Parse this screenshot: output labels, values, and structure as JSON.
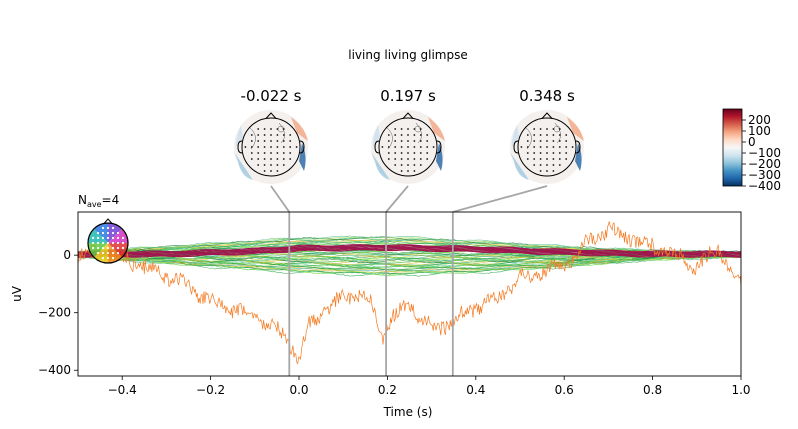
{
  "figure": {
    "title": "living living glimpse",
    "nave_label": "N",
    "nave_sub": "ave",
    "nave_value": "=4"
  },
  "chart_data": {
    "type": "line",
    "title": "living living glimpse",
    "xlabel": "Time (s)",
    "ylabel": "uV",
    "xlim": [
      -0.5,
      1.0
    ],
    "ylim": [
      -420,
      150
    ],
    "xticks": [
      -0.4,
      -0.2,
      0.0,
      0.2,
      0.4,
      0.6,
      0.8,
      1.0
    ],
    "xtick_labels": [
      "−0.4",
      "−0.2",
      "0.0",
      "0.2",
      "0.4",
      "0.6",
      "0.8",
      "1.0"
    ],
    "yticks": [
      0,
      -200,
      -400
    ],
    "ytick_labels": [
      "0",
      "−200",
      "−400"
    ],
    "grid": false,
    "n_channels": 60,
    "highlight_series": {
      "color": "#f47a20",
      "points": [
        [
          -0.5,
          10
        ],
        [
          -0.45,
          5
        ],
        [
          -0.4,
          -10
        ],
        [
          -0.35,
          -40
        ],
        [
          -0.3,
          -70
        ],
        [
          -0.25,
          -110
        ],
        [
          -0.2,
          -160
        ],
        [
          -0.15,
          -190
        ],
        [
          -0.1,
          -210
        ],
        [
          -0.05,
          -260
        ],
        [
          -0.02,
          -300
        ],
        [
          0.0,
          -380
        ],
        [
          0.02,
          -250
        ],
        [
          0.05,
          -200
        ],
        [
          0.1,
          -150
        ],
        [
          0.13,
          -130
        ],
        [
          0.16,
          -160
        ],
        [
          0.19,
          -280
        ],
        [
          0.21,
          -220
        ],
        [
          0.25,
          -170
        ],
        [
          0.3,
          -260
        ],
        [
          0.35,
          -230
        ],
        [
          0.4,
          -180
        ],
        [
          0.45,
          -150
        ],
        [
          0.5,
          -80
        ],
        [
          0.55,
          -60
        ],
        [
          0.6,
          -40
        ],
        [
          0.65,
          40
        ],
        [
          0.7,
          90
        ],
        [
          0.75,
          60
        ],
        [
          0.8,
          30
        ],
        [
          0.85,
          0
        ],
        [
          0.9,
          -40
        ],
        [
          0.95,
          20
        ],
        [
          1.0,
          -100
        ]
      ]
    },
    "band_series": {
      "color": "#a0174f",
      "points": [
        [
          -0.3,
          5
        ],
        [
          -0.1,
          15
        ],
        [
          0.0,
          25
        ],
        [
          0.2,
          28
        ],
        [
          0.4,
          22
        ],
        [
          0.6,
          12
        ],
        [
          0.8,
          5
        ]
      ]
    },
    "envelope_top": {
      "color": "#3cc43c",
      "points": [
        [
          -0.5,
          10
        ],
        [
          -0.2,
          40
        ],
        [
          0.0,
          60
        ],
        [
          0.2,
          65
        ],
        [
          0.4,
          50
        ],
        [
          0.6,
          30
        ],
        [
          0.8,
          15
        ],
        [
          1.0,
          10
        ]
      ]
    },
    "envelope_bottom": {
      "color": "#1a7a28",
      "points": [
        [
          -0.5,
          -5
        ],
        [
          -0.2,
          -40
        ],
        [
          0.0,
          -60
        ],
        [
          0.2,
          -70
        ],
        [
          0.4,
          -60
        ],
        [
          0.6,
          -40
        ],
        [
          0.8,
          -15
        ],
        [
          1.0,
          -5
        ]
      ]
    },
    "time_markers": [
      -0.022,
      0.197,
      0.348
    ]
  },
  "topomaps": [
    {
      "time_label": "-0.022 s"
    },
    {
      "time_label": "0.197 s"
    },
    {
      "time_label": "0.348 s"
    }
  ],
  "colorbar": {
    "ticks": [
      200,
      100,
      0,
      -100,
      -200,
      -300,
      -400
    ],
    "tick_labels": [
      "200",
      "100",
      "0",
      "−100",
      "−200",
      "−300",
      "−400"
    ],
    "vmin": -400,
    "vmax": 300,
    "colors": [
      "#053061",
      "#2166ac",
      "#4393c3",
      "#92c5de",
      "#d1e5f0",
      "#f7f7f7",
      "#fddbc7",
      "#f4a582",
      "#d6604d",
      "#b2182b",
      "#67001f"
    ]
  }
}
